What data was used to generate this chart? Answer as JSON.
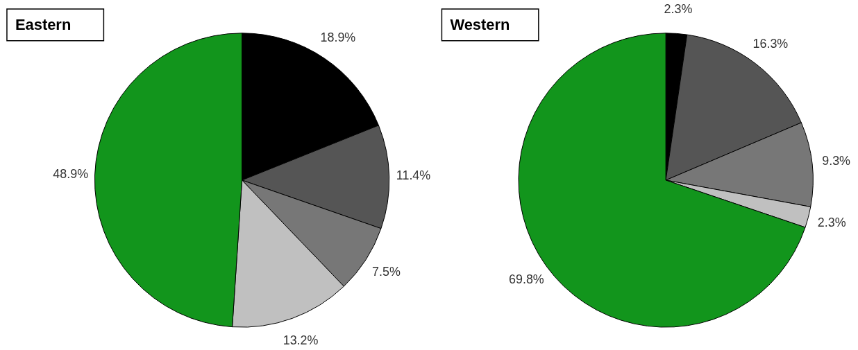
{
  "chart_data": [
    {
      "type": "pie",
      "title": "Eastern",
      "categories": [
        null,
        null,
        null,
        null,
        null
      ],
      "values": [
        18.9,
        11.4,
        7.5,
        13.2,
        48.9
      ],
      "colors": [
        "#000000",
        "#555555",
        "#777777",
        "#c0c0c0",
        "#12951c"
      ],
      "value_labels": [
        "18.9%",
        "11.4%",
        "7.5%",
        "13.2%",
        "48.9%"
      ],
      "legend": false
    },
    {
      "type": "pie",
      "title": "Western",
      "categories": [
        null,
        null,
        null,
        null,
        null
      ],
      "values": [
        2.3,
        16.3,
        9.3,
        2.3,
        69.8
      ],
      "colors": [
        "#000000",
        "#555555",
        "#777777",
        "#c0c0c0",
        "#12951c"
      ],
      "value_labels": [
        "2.3%",
        "16.3%",
        "9.3%",
        "2.3%",
        "69.8%"
      ],
      "legend": false
    }
  ]
}
